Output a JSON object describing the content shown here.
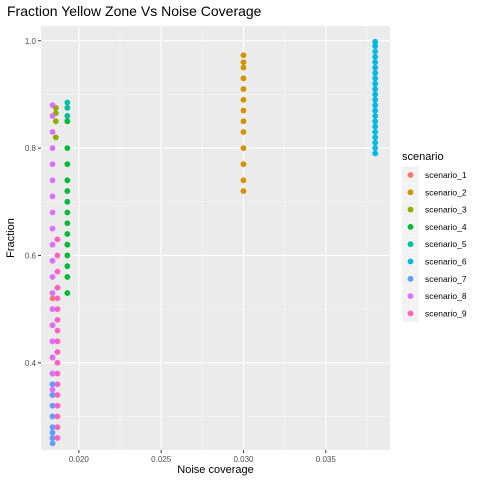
{
  "chart_data": {
    "type": "scatter",
    "title": "Fraction Yellow Zone Vs Noise Coverage",
    "xlabel": "Noise coverage",
    "ylabel": "Fraction",
    "xlim": [
      0.0177,
      0.0389
    ],
    "ylim": [
      0.2375,
      1.0275
    ],
    "x_ticks": [
      0.02,
      0.025,
      0.03,
      0.035
    ],
    "x_tick_labels": [
      "0.020",
      "0.025",
      "0.030",
      "0.035"
    ],
    "y_ticks": [
      0.4,
      0.6,
      0.8,
      1.0
    ],
    "y_tick_labels": [
      "0.4",
      "0.6",
      "0.8",
      "1.0"
    ],
    "grid": true,
    "legend": {
      "title": "scenario",
      "position": "right"
    },
    "series": [
      {
        "name": "scenario_1",
        "color": "#F8766D",
        "x": [
          0.0184,
          0.0184,
          0.0184,
          0.0184,
          0.0184,
          0.0184,
          0.0184,
          0.0184,
          0.0184
        ],
        "y": [
          0.26,
          0.3,
          0.34,
          0.38,
          0.41,
          0.44,
          0.47,
          0.5,
          0.52
        ]
      },
      {
        "name": "scenario_2",
        "color": "#D39200",
        "x": [
          0.03,
          0.03,
          0.03,
          0.03,
          0.03,
          0.03,
          0.03,
          0.03,
          0.03,
          0.03,
          0.03,
          0.03,
          0.03
        ],
        "y": [
          0.72,
          0.74,
          0.77,
          0.8,
          0.83,
          0.85,
          0.87,
          0.89,
          0.91,
          0.93,
          0.95,
          0.96,
          0.973
        ]
      },
      {
        "name": "scenario_3",
        "color": "#93AA00",
        "x": [
          0.0186,
          0.0186,
          0.0186,
          0.0186
        ],
        "y": [
          0.82,
          0.85,
          0.865,
          0.875
        ]
      },
      {
        "name": "scenario_4",
        "color": "#00BA38",
        "x": [
          0.0193,
          0.0193,
          0.0193,
          0.0193,
          0.0193,
          0.0193,
          0.0193,
          0.0193,
          0.0193,
          0.0193,
          0.0193,
          0.0193,
          0.0193,
          0.0193
        ],
        "y": [
          0.53,
          0.56,
          0.58,
          0.6,
          0.62,
          0.64,
          0.66,
          0.68,
          0.7,
          0.72,
          0.74,
          0.77,
          0.8,
          0.85
        ]
      },
      {
        "name": "scenario_5",
        "color": "#00C19F",
        "x": [
          0.0193,
          0.0193,
          0.0193
        ],
        "y": [
          0.86,
          0.875,
          0.885
        ]
      },
      {
        "name": "scenario_6",
        "color": "#00B9E3",
        "x": [
          0.038,
          0.038,
          0.038,
          0.038,
          0.038,
          0.038,
          0.038,
          0.038,
          0.038,
          0.038,
          0.038,
          0.038,
          0.038,
          0.038,
          0.038,
          0.038,
          0.038,
          0.038,
          0.038,
          0.038,
          0.038,
          0.038
        ],
        "y": [
          0.79,
          0.8,
          0.81,
          0.82,
          0.83,
          0.84,
          0.85,
          0.86,
          0.87,
          0.88,
          0.89,
          0.9,
          0.91,
          0.92,
          0.93,
          0.94,
          0.95,
          0.96,
          0.97,
          0.98,
          0.99,
          0.998
        ]
      },
      {
        "name": "scenario_7",
        "color": "#619CFF",
        "x": [
          0.0184,
          0.0184,
          0.0184,
          0.0184,
          0.0184,
          0.0184,
          0.0184,
          0.0184,
          0.0184
        ],
        "y": [
          0.25,
          0.26,
          0.27,
          0.28,
          0.3,
          0.32,
          0.34,
          0.36,
          0.38
        ]
      },
      {
        "name": "scenario_8",
        "color": "#DB72FB",
        "x": [
          0.0184,
          0.0184,
          0.0184,
          0.0184,
          0.0184,
          0.0184,
          0.0184,
          0.0184,
          0.0184,
          0.0184,
          0.0184,
          0.0184,
          0.0184,
          0.0184,
          0.0184,
          0.0184,
          0.0184,
          0.0184,
          0.0184
        ],
        "y": [
          0.35,
          0.38,
          0.41,
          0.44,
          0.47,
          0.5,
          0.53,
          0.56,
          0.59,
          0.62,
          0.65,
          0.68,
          0.71,
          0.74,
          0.77,
          0.8,
          0.83,
          0.86,
          0.88
        ]
      },
      {
        "name": "scenario_9",
        "color": "#FF61C3",
        "x": [
          0.0187,
          0.0187,
          0.0187,
          0.0187,
          0.0187,
          0.0187,
          0.0187,
          0.0187,
          0.0187,
          0.0187,
          0.0187,
          0.0187,
          0.0187,
          0.0187,
          0.0187,
          0.0187,
          0.0187,
          0.0187
        ],
        "y": [
          0.26,
          0.28,
          0.3,
          0.32,
          0.34,
          0.36,
          0.38,
          0.4,
          0.42,
          0.44,
          0.46,
          0.48,
          0.5,
          0.52,
          0.54,
          0.57,
          0.6,
          0.63
        ]
      }
    ]
  }
}
